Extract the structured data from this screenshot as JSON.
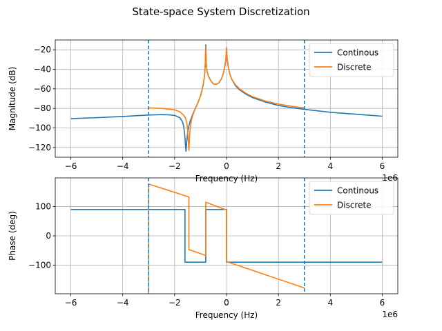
{
  "figure_title": "State-space System Discretization",
  "chart_data": [
    {
      "type": "line",
      "ylabel": "Magnitude (dB)",
      "xlabel": "Frequency (Hz)",
      "x_offset_label": "1e6",
      "xlim": [
        -6.6,
        6.6
      ],
      "ylim": [
        -130,
        -10
      ],
      "xticks": [
        -6,
        -4,
        -2,
        0,
        2,
        4,
        6
      ],
      "xtick_labels": [
        "−6",
        "−4",
        "−2",
        "0",
        "2",
        "4",
        "6"
      ],
      "yticks": [
        -120,
        -100,
        -80,
        -60,
        -40,
        -20
      ],
      "ytick_labels": [
        "−120",
        "−100",
        "−80",
        "−60",
        "−40",
        "−20"
      ],
      "grid": true,
      "legend_position": "top-right",
      "vlines": [
        -3,
        3
      ],
      "series": [
        {
          "name": "Continous",
          "color": "#1f77b4",
          "points": [
            [
              -6,
              -90.5
            ],
            [
              -5,
              -89.5
            ],
            [
              -4,
              -88.3
            ],
            [
              -3.5,
              -87.5
            ],
            [
              -3,
              -86.8
            ],
            [
              -2.5,
              -86.4
            ],
            [
              -2.2,
              -86.6
            ],
            [
              -2.0,
              -87.2
            ],
            [
              -1.8,
              -89.5
            ],
            [
              -1.7,
              -93.5
            ],
            [
              -1.65,
              -98
            ],
            [
              -1.6,
              -110
            ],
            [
              -1.58,
              -118
            ],
            [
              -1.56,
              -124
            ],
            [
              -1.53,
              -113
            ],
            [
              -1.5,
              -105
            ],
            [
              -1.45,
              -98
            ],
            [
              -1.4,
              -93
            ],
            [
              -1.3,
              -86
            ],
            [
              -1.2,
              -80
            ],
            [
              -1.1,
              -74
            ],
            [
              -1.0,
              -67
            ],
            [
              -0.95,
              -62
            ],
            [
              -0.9,
              -56
            ],
            [
              -0.85,
              -47
            ],
            [
              -0.82,
              -35
            ],
            [
              -0.8,
              -15
            ],
            [
              -0.78,
              -35
            ],
            [
              -0.75,
              -42
            ],
            [
              -0.7,
              -47
            ],
            [
              -0.6,
              -52
            ],
            [
              -0.5,
              -55
            ],
            [
              -0.4,
              -55.5
            ],
            [
              -0.3,
              -54
            ],
            [
              -0.2,
              -50
            ],
            [
              -0.12,
              -44
            ],
            [
              -0.06,
              -36
            ],
            [
              -0.02,
              -28
            ],
            [
              0,
              -18
            ],
            [
              0.02,
              -28
            ],
            [
              0.06,
              -36
            ],
            [
              0.12,
              -44
            ],
            [
              0.2,
              -50
            ],
            [
              0.35,
              -57
            ],
            [
              0.5,
              -61
            ],
            [
              0.75,
              -65.5
            ],
            [
              1.0,
              -69
            ],
            [
              1.5,
              -73.5
            ],
            [
              2.0,
              -77
            ],
            [
              2.5,
              -79.2
            ],
            [
              3.0,
              -81
            ],
            [
              4.0,
              -84
            ],
            [
              5.0,
              -86
            ],
            [
              6.0,
              -88
            ]
          ]
        },
        {
          "name": "Discrete",
          "color": "#ff7f0e",
          "points": [
            [
              -3,
              -79.5
            ],
            [
              -2.5,
              -80
            ],
            [
              -2.0,
              -81.5
            ],
            [
              -1.8,
              -83.5
            ],
            [
              -1.65,
              -87
            ],
            [
              -1.58,
              -90
            ],
            [
              -1.53,
              -95
            ],
            [
              -1.5,
              -102
            ],
            [
              -1.47,
              -115
            ],
            [
              -1.45,
              -123
            ],
            [
              -1.43,
              -112
            ],
            [
              -1.4,
              -100
            ],
            [
              -1.35,
              -92
            ],
            [
              -1.3,
              -87
            ],
            [
              -1.2,
              -80
            ],
            [
              -1.1,
              -74
            ],
            [
              -1.0,
              -67
            ],
            [
              -0.95,
              -62
            ],
            [
              -0.9,
              -56
            ],
            [
              -0.85,
              -47
            ],
            [
              -0.82,
              -35
            ],
            [
              -0.8,
              -17
            ],
            [
              -0.78,
              -35
            ],
            [
              -0.75,
              -42
            ],
            [
              -0.7,
              -47
            ],
            [
              -0.6,
              -52
            ],
            [
              -0.5,
              -55
            ],
            [
              -0.4,
              -55.5
            ],
            [
              -0.3,
              -54
            ],
            [
              -0.2,
              -50
            ],
            [
              -0.12,
              -44
            ],
            [
              -0.06,
              -36
            ],
            [
              -0.02,
              -28
            ],
            [
              0,
              -18
            ],
            [
              0.02,
              -28
            ],
            [
              0.06,
              -36
            ],
            [
              0.12,
              -44
            ],
            [
              0.2,
              -50
            ],
            [
              0.35,
              -56
            ],
            [
              0.5,
              -60
            ],
            [
              0.75,
              -64.5
            ],
            [
              1.0,
              -68
            ],
            [
              1.5,
              -72.5
            ],
            [
              2.0,
              -75.5
            ],
            [
              2.5,
              -77.8
            ],
            [
              3.0,
              -79.5
            ]
          ]
        }
      ]
    },
    {
      "type": "line",
      "ylabel": "Phase (deg)",
      "xlabel": "Frequency (Hz)",
      "x_offset_label": "1e6",
      "xlim": [
        -6.6,
        6.6
      ],
      "ylim": [
        -198,
        198
      ],
      "xticks": [
        -6,
        -4,
        -2,
        0,
        2,
        4,
        6
      ],
      "xtick_labels": [
        "−6",
        "−4",
        "−2",
        "0",
        "2",
        "4",
        "6"
      ],
      "yticks": [
        -100,
        0,
        100
      ],
      "ytick_labels": [
        "−100",
        "0",
        "100"
      ],
      "grid": true,
      "legend_position": "top-right",
      "vlines": [
        -3,
        3
      ],
      "series": [
        {
          "name": "Continous",
          "color": "#1f77b4",
          "points": [
            [
              -6,
              90
            ],
            [
              -1.6,
              90
            ],
            [
              -1.6,
              -90
            ],
            [
              -0.8,
              -90
            ],
            [
              -0.8,
              90
            ],
            [
              0,
              90
            ],
            [
              0,
              -90
            ],
            [
              6,
              -90
            ]
          ]
        },
        {
          "name": "Discrete",
          "color": "#ff7f0e",
          "points": [
            [
              -3,
              -198
            ],
            [
              -3,
              177
            ],
            [
              -1.45,
              133
            ],
            [
              -1.45,
              -47
            ],
            [
              -0.8,
              -67
            ],
            [
              -0.8,
              115
            ],
            [
              0,
              88
            ],
            [
              0,
              -88
            ],
            [
              3,
              -178
            ]
          ]
        }
      ]
    }
  ]
}
